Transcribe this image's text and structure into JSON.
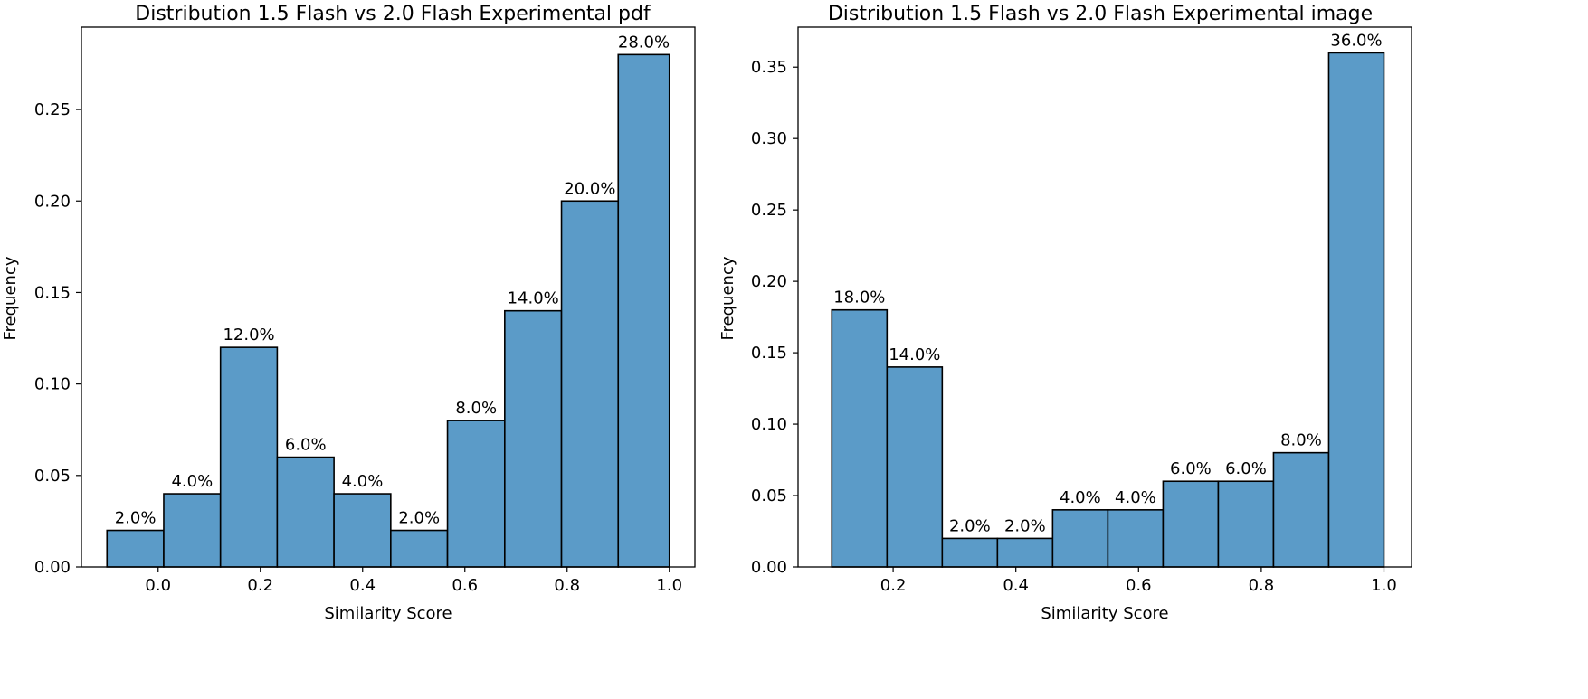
{
  "chart_data": [
    {
      "type": "bar",
      "title": "Distribution 1.5 Flash vs 2.0 Flash Experimental pdf",
      "xlabel": "Similarity Score",
      "ylabel": "Frequency",
      "xlim": [
        -0.15,
        1.05
      ],
      "ylim": [
        0,
        0.295
      ],
      "xticks": [
        0.0,
        0.2,
        0.4,
        0.6,
        0.8,
        1.0
      ],
      "xtick_labels": [
        "0.0",
        "0.2",
        "0.4",
        "0.6",
        "0.8",
        "1.0"
      ],
      "yticks": [
        0.0,
        0.05,
        0.1,
        0.15,
        0.2,
        0.25
      ],
      "ytick_labels": [
        "0.00",
        "0.05",
        "0.10",
        "0.15",
        "0.20",
        "0.25"
      ],
      "bin_edges": [
        -0.1,
        0.011,
        0.122,
        0.233,
        0.344,
        0.455,
        0.566,
        0.678,
        0.789,
        0.9,
        1.0
      ],
      "values": [
        0.02,
        0.04,
        0.12,
        0.06,
        0.04,
        0.02,
        0.08,
        0.14,
        0.2,
        0.28
      ],
      "data_labels": [
        "2.0%",
        "4.0%",
        "12.0%",
        "6.0%",
        "4.0%",
        "2.0%",
        "8.0%",
        "14.0%",
        "20.0%",
        "28.0%"
      ],
      "grid": false,
      "bar_color": "#5b9bc8"
    },
    {
      "type": "bar",
      "title": "Distribution 1.5 Flash vs 2.0 Flash Experimental image",
      "xlabel": "Similarity Score",
      "ylabel": "Frequency",
      "xlim": [
        0.045,
        1.045
      ],
      "ylim": [
        0,
        0.378
      ],
      "xticks": [
        0.2,
        0.4,
        0.6,
        0.8,
        1.0
      ],
      "xtick_labels": [
        "0.2",
        "0.4",
        "0.6",
        "0.8",
        "1.0"
      ],
      "yticks": [
        0.0,
        0.05,
        0.1,
        0.15,
        0.2,
        0.25,
        0.3,
        0.35
      ],
      "ytick_labels": [
        "0.00",
        "0.05",
        "0.10",
        "0.15",
        "0.20",
        "0.25",
        "0.30",
        "0.35"
      ],
      "bin_edges": [
        0.1,
        0.19,
        0.28,
        0.37,
        0.46,
        0.55,
        0.64,
        0.73,
        0.82,
        0.91,
        1.0
      ],
      "values": [
        0.18,
        0.14,
        0.02,
        0.02,
        0.04,
        0.04,
        0.06,
        0.06,
        0.08,
        0.36
      ],
      "data_labels": [
        "18.0%",
        "14.0%",
        "2.0%",
        "2.0%",
        "4.0%",
        "4.0%",
        "6.0%",
        "6.0%",
        "8.0%",
        "36.0%"
      ],
      "grid": false,
      "bar_color": "#5b9bc8"
    }
  ]
}
